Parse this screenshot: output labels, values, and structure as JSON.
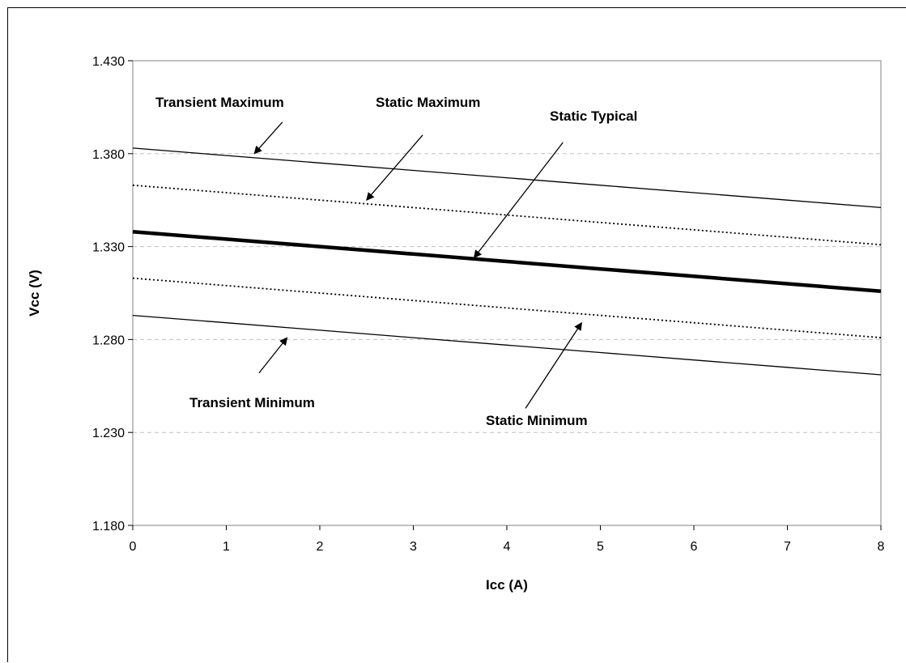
{
  "chart_data": {
    "type": "line",
    "title": "",
    "xlabel": "Icc (A)",
    "ylabel": "Vcc (V)",
    "xlim": [
      0,
      8
    ],
    "ylim": [
      1.18,
      1.43
    ],
    "x_ticks": [
      "0",
      "1",
      "2",
      "3",
      "4",
      "5",
      "6",
      "7",
      "8"
    ],
    "y_ticks": [
      "1.180",
      "1.230",
      "1.280",
      "1.330",
      "1.380",
      "1.430"
    ],
    "grid": "horizontal dashed",
    "legend": "none",
    "x": [
      0,
      1,
      2,
      3,
      4,
      5,
      6,
      7,
      8
    ],
    "series": [
      {
        "name": "Transient Maximum",
        "style": "thin-solid",
        "color": "#000000",
        "values": [
          1.383,
          1.379,
          1.375,
          1.371,
          1.367,
          1.363,
          1.359,
          1.355,
          1.351
        ]
      },
      {
        "name": "Static Maximum",
        "style": "dotted",
        "color": "#000000",
        "values": [
          1.363,
          1.359,
          1.355,
          1.351,
          1.347,
          1.343,
          1.339,
          1.335,
          1.331
        ]
      },
      {
        "name": "Static Typical",
        "style": "thick-solid",
        "color": "#000000",
        "values": [
          1.338,
          1.334,
          1.33,
          1.326,
          1.322,
          1.318,
          1.314,
          1.31,
          1.306
        ]
      },
      {
        "name": "Static Minimum",
        "style": "dotted",
        "color": "#000000",
        "values": [
          1.313,
          1.309,
          1.305,
          1.301,
          1.297,
          1.293,
          1.289,
          1.285,
          1.281
        ]
      },
      {
        "name": "Transient Minimum",
        "style": "thin-solid",
        "color": "#000000",
        "values": [
          1.293,
          1.289,
          1.285,
          1.281,
          1.277,
          1.273,
          1.269,
          1.265,
          1.261
        ]
      }
    ],
    "annotations": [
      {
        "text": "Transient Maximum",
        "arrow_to": {
          "x": 1.3,
          "y": 1.38
        },
        "arrow_from": {
          "x": 1.6,
          "y": 1.397
        }
      },
      {
        "text": "Static Maximum",
        "arrow_to": {
          "x": 2.5,
          "y": 1.355
        },
        "arrow_from": {
          "x": 3.1,
          "y": 1.39
        }
      },
      {
        "text": "Static Typical",
        "arrow_to": {
          "x": 3.65,
          "y": 1.324
        },
        "arrow_from": {
          "x": 4.6,
          "y": 1.386
        }
      },
      {
        "text": "Static Minimum",
        "arrow_to": {
          "x": 4.8,
          "y": 1.289
        },
        "arrow_from": {
          "x": 4.2,
          "y": 1.243
        }
      },
      {
        "text": "Transient Minimum",
        "arrow_to": {
          "x": 1.65,
          "y": 1.281
        },
        "arrow_from": {
          "x": 1.35,
          "y": 1.262
        }
      }
    ]
  }
}
